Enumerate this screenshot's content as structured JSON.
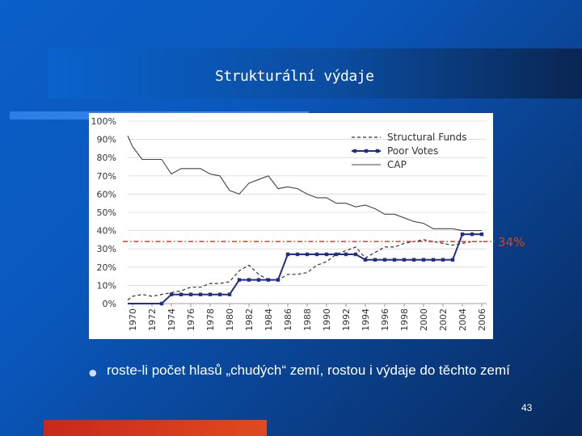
{
  "slide": {
    "title": "Strukturální výdaje",
    "bullet_text": "roste-li počet hlasů „chudých“ zemí, rostou i výdaje do těchto zemí",
    "page_number": "43",
    "bullet_icon": "small-circle-bullet"
  },
  "chart_data": {
    "type": "line",
    "title": "",
    "xlabel": "",
    "ylabel": "",
    "ylim": [
      0,
      100
    ],
    "y_ticks": [
      "0%",
      "10%",
      "20%",
      "30%",
      "40%",
      "50%",
      "60%",
      "70%",
      "80%",
      "90%",
      "100%"
    ],
    "x_ticks": [
      "1970",
      "1972",
      "1974",
      "1976",
      "1978",
      "1980",
      "1982",
      "1984",
      "1986",
      "1988",
      "1990",
      "1992",
      "1994",
      "1996",
      "1998",
      "2000",
      "2002",
      "2004",
      "2006"
    ],
    "xlim": [
      1969.5,
      2006.5
    ],
    "legend_position": "top-right",
    "colors": {
      "axis_text": "#333333",
      "grid": "#cccccc",
      "series": "#1f2f8a",
      "threshold": "#d2461e"
    },
    "threshold": {
      "value": 34,
      "label": "34%"
    },
    "series": [
      {
        "name": "Structural Funds",
        "style": "dashed",
        "points": [
          [
            1969.5,
            2
          ],
          [
            1970,
            4
          ],
          [
            1971,
            5
          ],
          [
            1972,
            4
          ],
          [
            1973,
            5
          ],
          [
            1974,
            6
          ],
          [
            1975,
            7
          ],
          [
            1976,
            9
          ],
          [
            1977,
            9
          ],
          [
            1978,
            11
          ],
          [
            1979,
            11
          ],
          [
            1980,
            12
          ],
          [
            1981,
            18
          ],
          [
            1982,
            21
          ],
          [
            1983,
            16
          ],
          [
            1984,
            13
          ],
          [
            1985,
            13
          ],
          [
            1986,
            16
          ],
          [
            1987,
            16
          ],
          [
            1988,
            17
          ],
          [
            1989,
            21
          ],
          [
            1990,
            23
          ],
          [
            1991,
            27
          ],
          [
            1992,
            29
          ],
          [
            1993,
            31
          ],
          [
            1994,
            25
          ],
          [
            1995,
            28
          ],
          [
            1996,
            31
          ],
          [
            1997,
            31
          ],
          [
            1998,
            33
          ],
          [
            1999,
            34
          ],
          [
            2000,
            35
          ],
          [
            2001,
            34
          ],
          [
            2002,
            33
          ],
          [
            2003,
            32
          ],
          [
            2004,
            33
          ],
          [
            2005,
            34
          ],
          [
            2006,
            34
          ]
        ]
      },
      {
        "name": "Poor Votes",
        "style": "solid-square-markers",
        "points": [
          [
            1969.5,
            0
          ],
          [
            1973,
            0
          ],
          [
            1974,
            5
          ],
          [
            1975,
            5
          ],
          [
            1976,
            5
          ],
          [
            1977,
            5
          ],
          [
            1978,
            5
          ],
          [
            1979,
            5
          ],
          [
            1980,
            5
          ],
          [
            1981,
            13
          ],
          [
            1982,
            13
          ],
          [
            1983,
            13
          ],
          [
            1984,
            13
          ],
          [
            1985,
            13
          ],
          [
            1986,
            27
          ],
          [
            1987,
            27
          ],
          [
            1988,
            27
          ],
          [
            1989,
            27
          ],
          [
            1990,
            27
          ],
          [
            1991,
            27
          ],
          [
            1992,
            27
          ],
          [
            1993,
            27
          ],
          [
            1994,
            24
          ],
          [
            1995,
            24
          ],
          [
            1996,
            24
          ],
          [
            1997,
            24
          ],
          [
            1998,
            24
          ],
          [
            1999,
            24
          ],
          [
            2000,
            24
          ],
          [
            2001,
            24
          ],
          [
            2002,
            24
          ],
          [
            2003,
            24
          ],
          [
            2004,
            38
          ],
          [
            2005,
            38
          ],
          [
            2006,
            38
          ]
        ]
      },
      {
        "name": "CAP",
        "style": "solid-thin",
        "points": [
          [
            1969.5,
            92
          ],
          [
            1970,
            86
          ],
          [
            1971,
            79
          ],
          [
            1972,
            79
          ],
          [
            1973,
            79
          ],
          [
            1974,
            71
          ],
          [
            1975,
            74
          ],
          [
            1976,
            74
          ],
          [
            1977,
            74
          ],
          [
            1978,
            71
          ],
          [
            1979,
            70
          ],
          [
            1980,
            62
          ],
          [
            1981,
            60
          ],
          [
            1982,
            66
          ],
          [
            1983,
            68
          ],
          [
            1984,
            70
          ],
          [
            1985,
            63
          ],
          [
            1986,
            64
          ],
          [
            1987,
            63
          ],
          [
            1988,
            60
          ],
          [
            1989,
            58
          ],
          [
            1990,
            58
          ],
          [
            1991,
            55
          ],
          [
            1992,
            55
          ],
          [
            1993,
            53
          ],
          [
            1994,
            54
          ],
          [
            1995,
            52
          ],
          [
            1996,
            49
          ],
          [
            1997,
            49
          ],
          [
            1998,
            47
          ],
          [
            1999,
            45
          ],
          [
            2000,
            44
          ],
          [
            2001,
            41
          ],
          [
            2002,
            41
          ],
          [
            2003,
            41
          ],
          [
            2004,
            40
          ],
          [
            2005,
            40
          ],
          [
            2006,
            40
          ]
        ]
      }
    ]
  }
}
